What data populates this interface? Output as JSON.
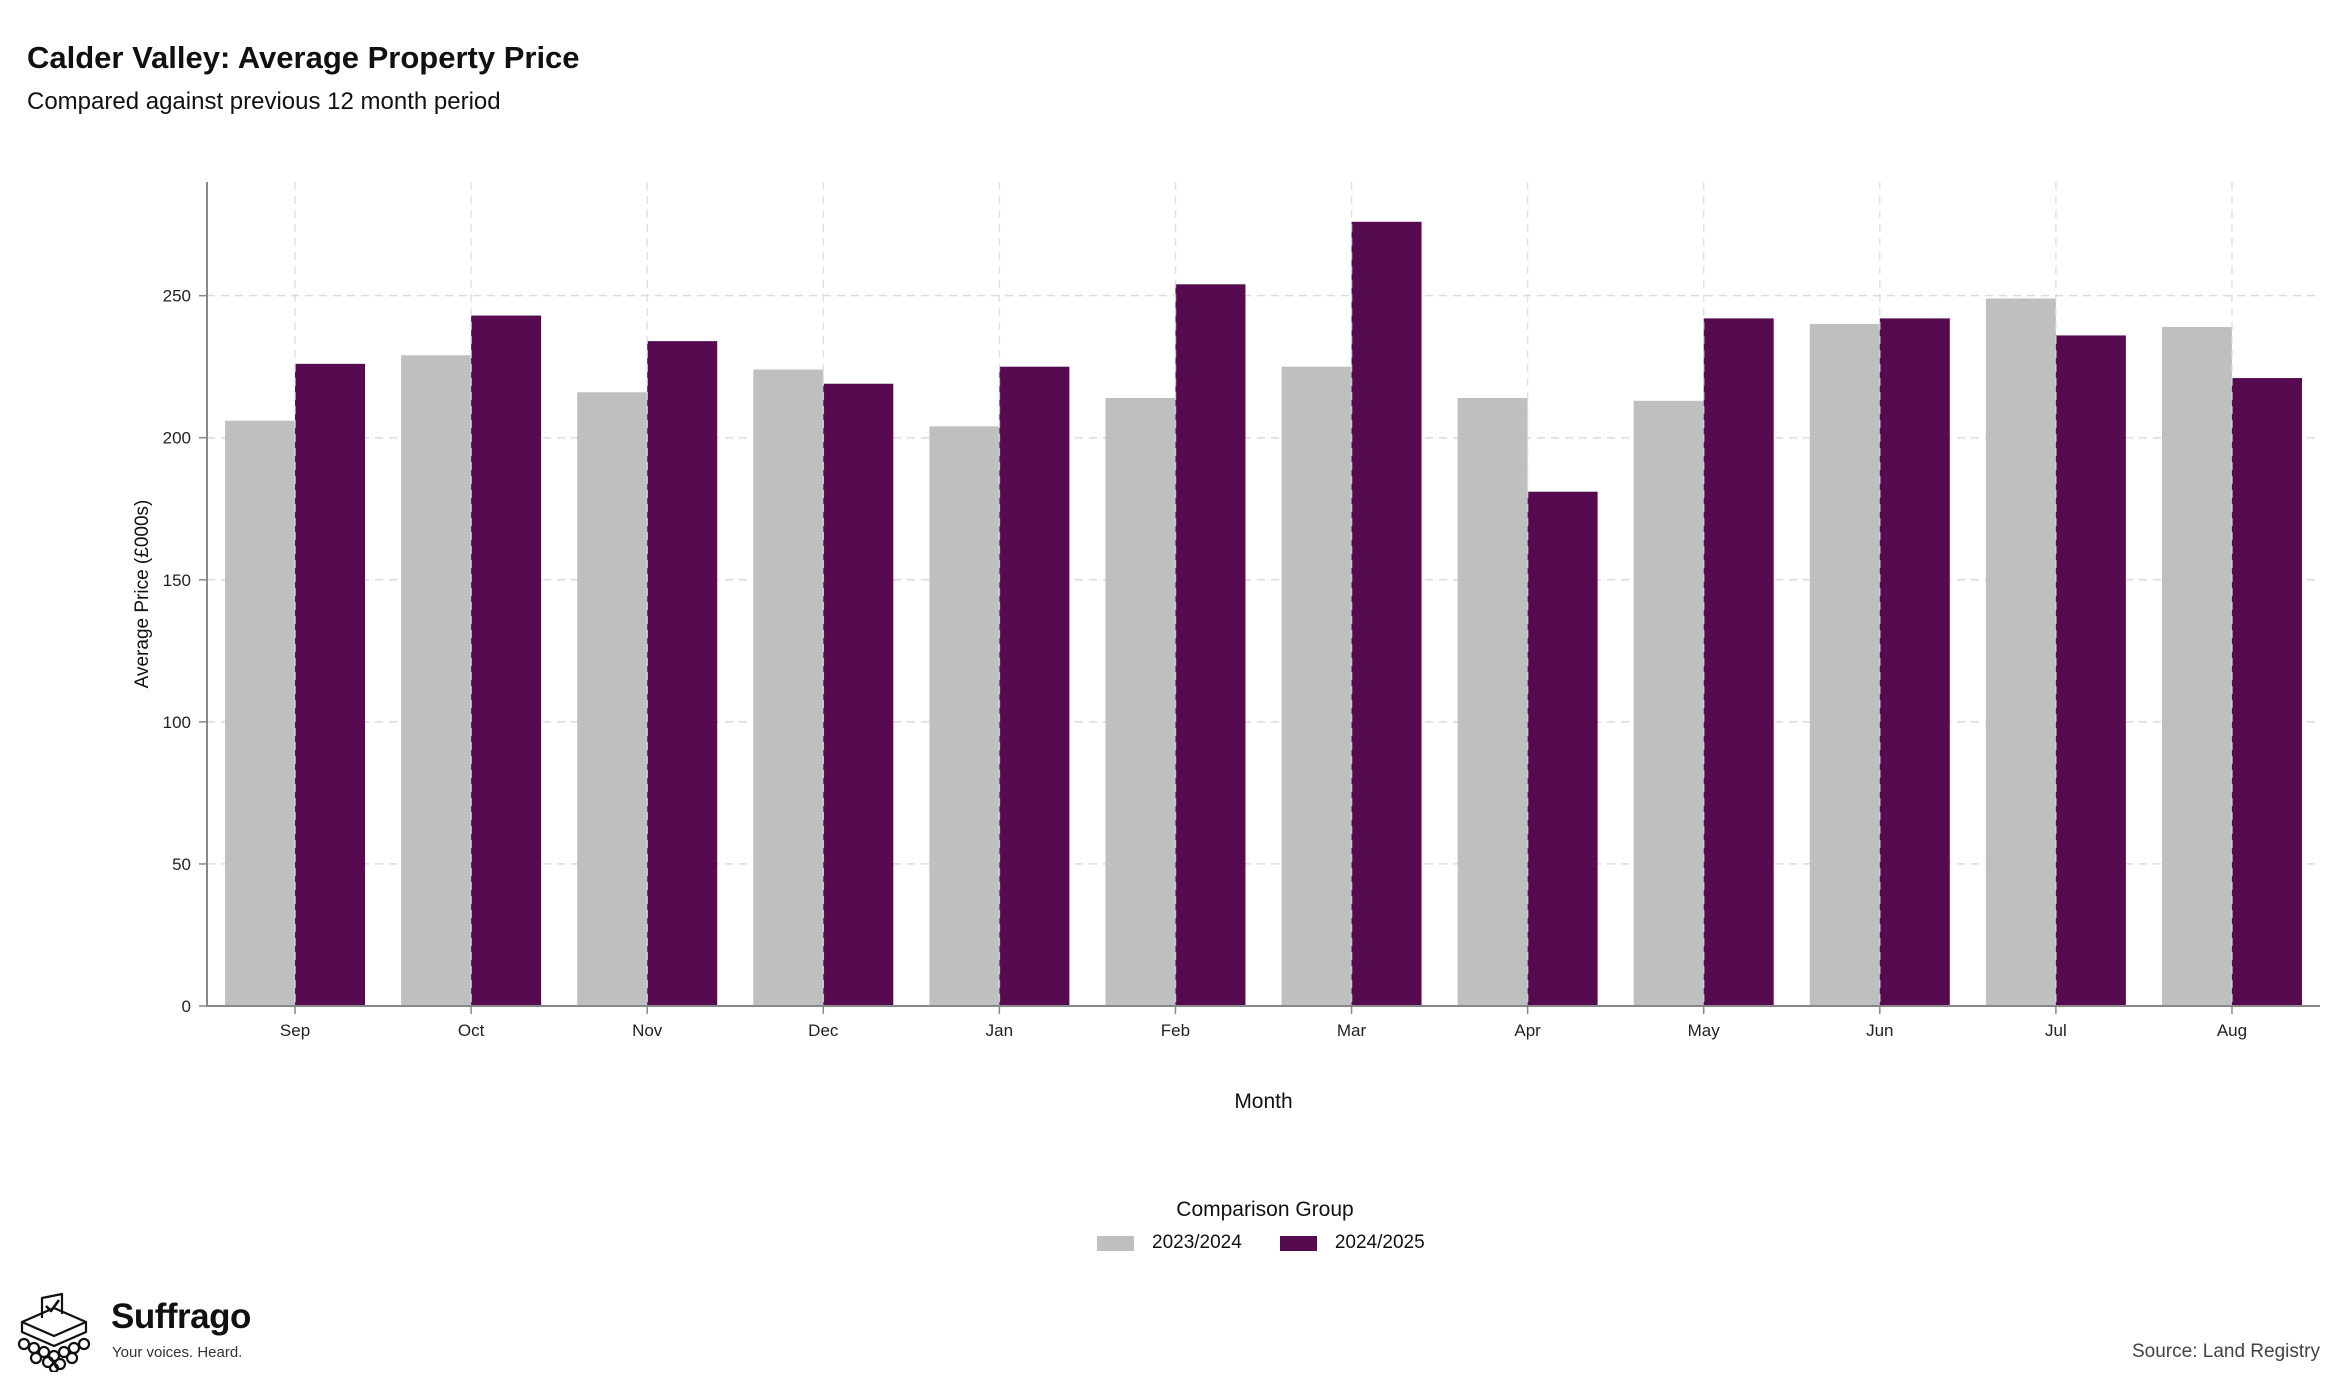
{
  "title": "Calder Valley: Average Property Price",
  "subtitle": "Compared against previous 12 month period",
  "legend": {
    "title": "Comparison Group",
    "items": [
      "2023/2024",
      "2024/2025"
    ]
  },
  "brand": {
    "name": "Suffrago",
    "tagline": "Your voices. Heard.",
    "logo_icon": "ballot-box-icon"
  },
  "source": "Source: Land Registry",
  "colors": {
    "series_2023": "#bfbfbf",
    "series_2024": "#560b51",
    "grid": "#dcdcdc",
    "axis": "#888888"
  },
  "chart_data": {
    "type": "bar",
    "xlabel": "Month",
    "ylabel": "Average Price (£000s)",
    "ylim": [
      0,
      290
    ],
    "yticks": [
      0,
      50,
      100,
      150,
      200,
      250
    ],
    "grid": true,
    "legend_position": "bottom",
    "categories": [
      "Sep",
      "Oct",
      "Nov",
      "Dec",
      "Jan",
      "Feb",
      "Mar",
      "Apr",
      "May",
      "Jun",
      "Jul",
      "Aug"
    ],
    "series": [
      {
        "name": "2023/2024",
        "values": [
          206,
          229,
          216,
          224,
          204,
          214,
          225,
          214,
          213,
          240,
          249,
          239
        ]
      },
      {
        "name": "2024/2025",
        "values": [
          226,
          243,
          234,
          219,
          225,
          254,
          276,
          181,
          242,
          242,
          236,
          221
        ]
      }
    ]
  }
}
